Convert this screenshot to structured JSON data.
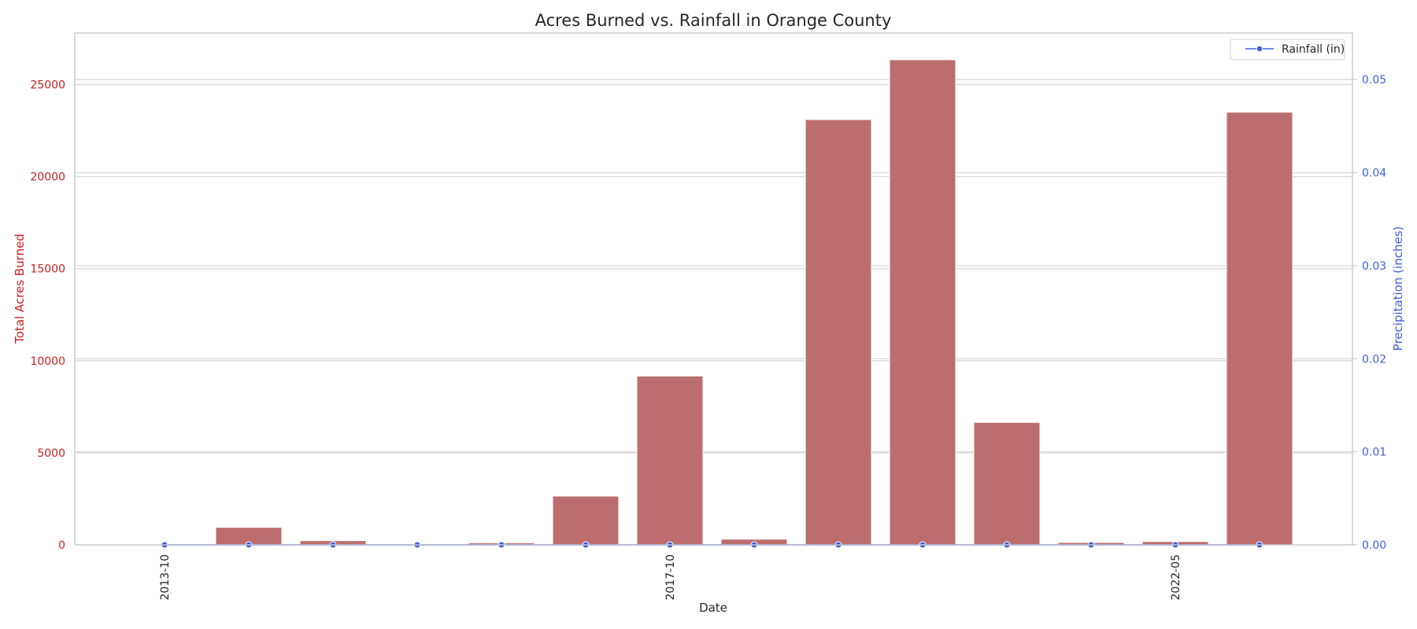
{
  "chart_data": {
    "type": "bar",
    "title": "Acres Burned vs. Rainfall in Orange County",
    "xlabel": "Date",
    "ylabel": "Total Acres Burned",
    "y2label": "Precipitation (inches)",
    "categories": [
      "2013-10",
      "",
      "",
      "",
      "",
      "",
      "2017-10",
      "",
      "",
      "",
      "",
      "",
      "2022-05",
      ""
    ],
    "xtick_labels": [
      "2013-10",
      "2017-10",
      "2022-05"
    ],
    "series": [
      {
        "axis": "left",
        "type": "bar",
        "values": [
          0,
          950,
          230,
          40,
          110,
          2650,
          9170,
          310,
          23100,
          26350,
          6650,
          130,
          180,
          23500
        ]
      },
      {
        "name": "Rainfall (in)",
        "axis": "right",
        "type": "line",
        "values": [
          0,
          0,
          0,
          0,
          0,
          0,
          0,
          0,
          0,
          0,
          0,
          0,
          0,
          0
        ]
      }
    ],
    "ylim": [
      0,
      27800
    ],
    "yticks": [
      0,
      5000,
      10000,
      15000,
      20000,
      25000
    ],
    "y2lim": [
      0,
      0.055
    ],
    "y2ticks": [
      "0.00",
      "0.01",
      "0.02",
      "0.03",
      "0.04",
      "0.05"
    ],
    "grid": true,
    "legend": "top-right",
    "colors": {
      "bar": "#bc6e6e",
      "line": "#3f5fdc",
      "left_axis": "#cc1f1f",
      "right_axis": "#3f5fdc",
      "grid": "#d9d9d9",
      "frame": "#cccccc",
      "text": "#262626"
    }
  }
}
